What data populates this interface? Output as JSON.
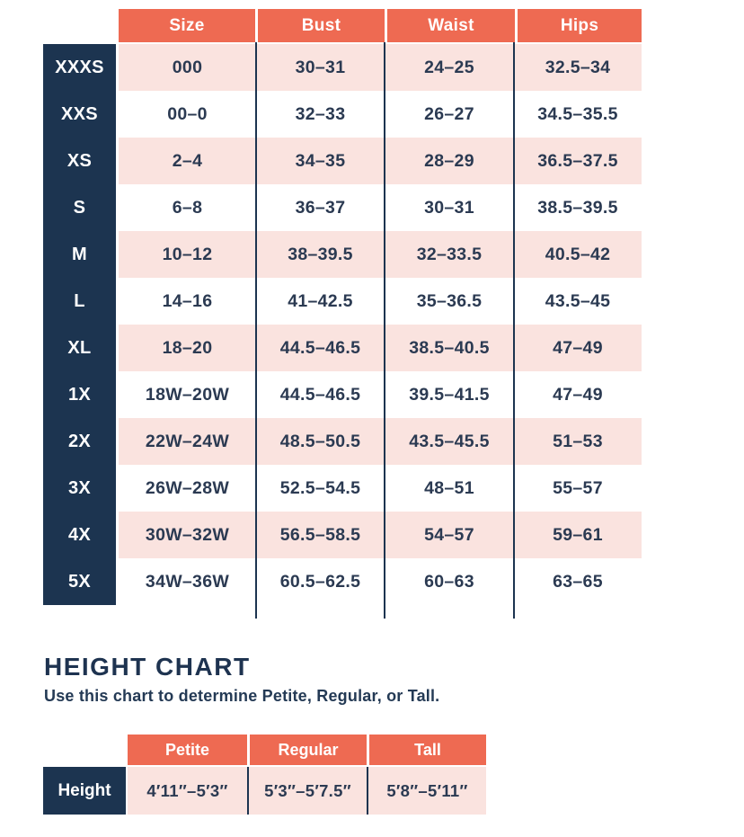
{
  "colors": {
    "header_coral": "#EE6A52",
    "row_pink": "#FAE3DF",
    "label_navy": "#1C3450",
    "text_navy": "#2B3A52",
    "row_white": "#FFFFFF"
  },
  "chart_data": [
    {
      "type": "table",
      "title": "",
      "columns": [
        "Size",
        "Bust",
        "Waist",
        "Hips"
      ],
      "row_labels": [
        "XXXS",
        "XXS",
        "XS",
        "S",
        "M",
        "L",
        "XL",
        "1X",
        "2X",
        "3X",
        "4X",
        "5X"
      ],
      "rows": [
        [
          "000",
          "30–31",
          "24–25",
          "32.5–34"
        ],
        [
          "00–0",
          "32–33",
          "26–27",
          "34.5–35.5"
        ],
        [
          "2–4",
          "34–35",
          "28–29",
          "36.5–37.5"
        ],
        [
          "6–8",
          "36–37",
          "30–31",
          "38.5–39.5"
        ],
        [
          "10–12",
          "38–39.5",
          "32–33.5",
          "40.5–42"
        ],
        [
          "14–16",
          "41–42.5",
          "35–36.5",
          "43.5–45"
        ],
        [
          "18–20",
          "44.5–46.5",
          "38.5–40.5",
          "47–49"
        ],
        [
          "18W–20W",
          "44.5–46.5",
          "39.5–41.5",
          "47–49"
        ],
        [
          "22W–24W",
          "48.5–50.5",
          "43.5–45.5",
          "51–53"
        ],
        [
          "26W–28W",
          "52.5–54.5",
          "48–51",
          "55–57"
        ],
        [
          "30W–32W",
          "56.5–58.5",
          "54–57",
          "59–61"
        ],
        [
          "34W–36W",
          "60.5–62.5",
          "60–63",
          "63–65"
        ]
      ],
      "layout": {
        "row_striping": "odd rows pink, even rows white",
        "legend": "none",
        "grid": "vertical navy dividers between columns"
      }
    },
    {
      "type": "table",
      "title": "HEIGHT CHART",
      "subtitle": "Use this chart to determine Petite, Regular, or Tall.",
      "columns": [
        "Petite",
        "Regular",
        "Tall"
      ],
      "row_labels": [
        "Height"
      ],
      "rows": [
        [
          "4′11″–5′3″",
          "5′3″–5′7.5″",
          "5′8″–5′11″"
        ]
      ],
      "layout": {
        "row_striping": "single pink row",
        "legend": "none",
        "grid": "vertical navy dividers between columns"
      }
    }
  ]
}
